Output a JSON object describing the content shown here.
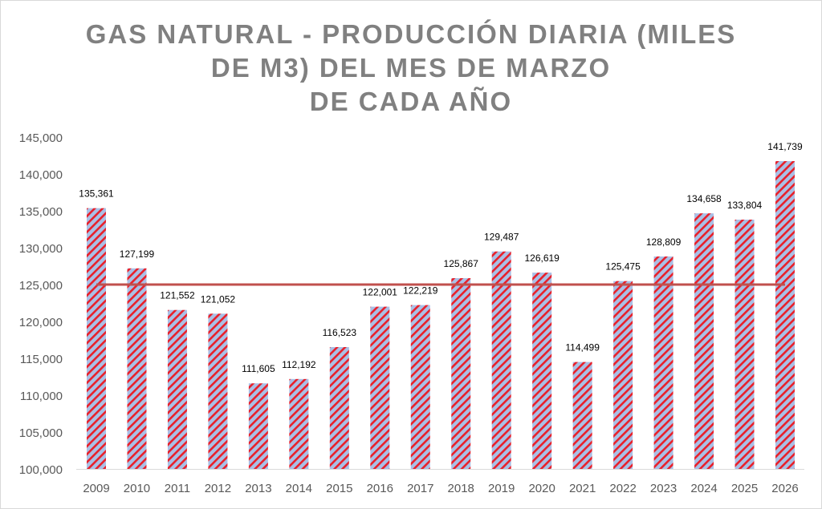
{
  "chart_data": {
    "type": "bar",
    "title_lines": [
      "GAS NATURAL - PRODUCCIÓN DIARIA (MILES",
      "DE M3) DEL MES DE MARZO",
      "DE CADA AÑO"
    ],
    "categories": [
      "2009",
      "2010",
      "2011",
      "2012",
      "2013",
      "2014",
      "2015",
      "2016",
      "2017",
      "2018",
      "2019",
      "2020",
      "2021",
      "2022",
      "2023",
      "2024",
      "2025",
      "2026"
    ],
    "values": [
      135361,
      127199,
      121552,
      121052,
      111605,
      112192,
      116523,
      122001,
      122219,
      125867,
      129487,
      126619,
      114499,
      125475,
      128809,
      134658,
      133804,
      141739
    ],
    "value_labels": [
      "135,361",
      "127,199",
      "121,552",
      "121,052",
      "111,605",
      "112,192",
      "116,523",
      "122,001",
      "122,219",
      "125,867",
      "129,487",
      "126,619",
      "114,499",
      "125,475",
      "128,809",
      "134,658",
      "133,804",
      "141,739"
    ],
    "reference_line": 125000,
    "ylim": [
      100000,
      145000
    ],
    "yticks": [
      "100,000",
      "105,000",
      "110,000",
      "115,000",
      "120,000",
      "125,000",
      "130,000",
      "135,000",
      "140,000",
      "145,000"
    ],
    "xlabel": "",
    "ylabel": "",
    "grid": false,
    "legend": "none",
    "colors": {
      "bar_fill": "#a9c0e6",
      "hatch": "#e8202a",
      "reference_line": "#c0504d",
      "title": "#808080",
      "axis_text": "#595959"
    }
  }
}
